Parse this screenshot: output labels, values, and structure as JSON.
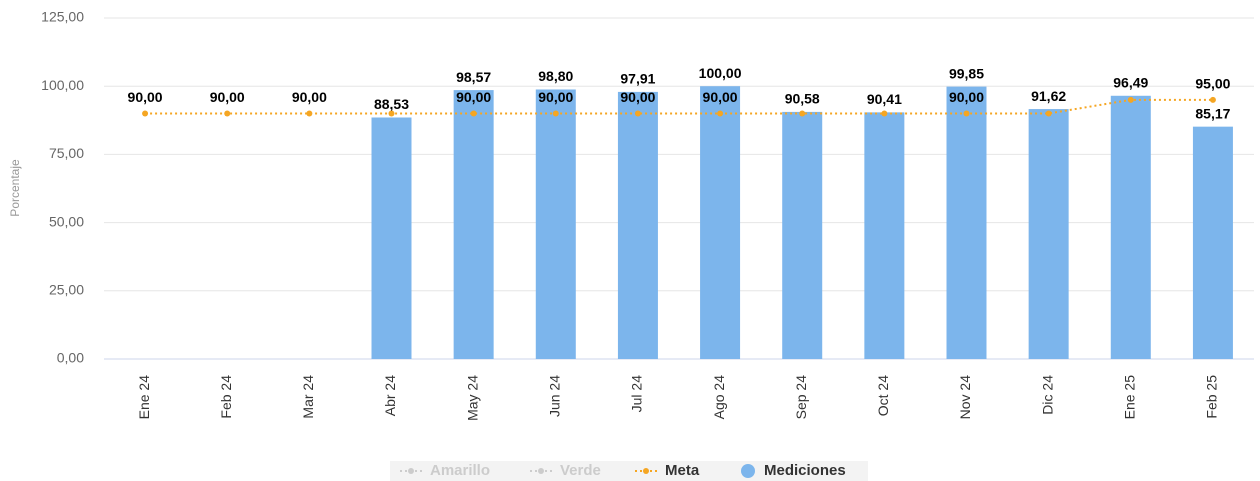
{
  "chart_data": {
    "type": "bar-line",
    "y_label": "Porcentaje",
    "categories": [
      "Ene 24",
      "Feb 24",
      "Mar 24",
      "Abr 24",
      "May 24",
      "Jun 24",
      "Jul 24",
      "Ago 24",
      "Sep 24",
      "Oct 24",
      "Nov 24",
      "Dic 24",
      "Ene 25",
      "Feb 25"
    ],
    "ylim": [
      0,
      125
    ],
    "yticks": [
      {
        "value": 0,
        "label": "0,00"
      },
      {
        "value": 25,
        "label": "25,00"
      },
      {
        "value": 50,
        "label": "50,00"
      },
      {
        "value": 75,
        "label": "75,00"
      },
      {
        "value": 100,
        "label": "100,00"
      },
      {
        "value": 125,
        "label": "125,00"
      }
    ],
    "grid": true,
    "legend": "bottom",
    "series": [
      {
        "name": "Amarillo",
        "color": "#cccccc",
        "kind": "line",
        "visible": false
      },
      {
        "name": "Verde",
        "color": "#cccccc",
        "kind": "line",
        "visible": false
      },
      {
        "name": "Meta",
        "color": "#f5a623",
        "kind": "line",
        "visible": true,
        "values": [
          90,
          90,
          90,
          90,
          90,
          90,
          90,
          90,
          90,
          90,
          90,
          90,
          95,
          95
        ],
        "value_labels": [
          "90,00",
          "90,00",
          "90,00",
          null,
          "90,00",
          "90,00",
          "90,00",
          "90,00",
          null,
          null,
          "90,00",
          null,
          null,
          "95,00"
        ]
      },
      {
        "name": "Mediciones",
        "color": "#7cb5ec",
        "kind": "bar",
        "visible": true,
        "values": [
          null,
          null,
          null,
          88.53,
          98.57,
          98.8,
          97.91,
          100,
          90.58,
          90.41,
          99.85,
          91.62,
          96.49,
          85.17
        ],
        "value_labels": [
          null,
          null,
          null,
          "88,53",
          "98,57",
          "98,80",
          "97,91",
          "100,00",
          "90,58",
          "90,41",
          "99,85",
          "91,62",
          "96,49",
          "85,17"
        ]
      }
    ]
  }
}
